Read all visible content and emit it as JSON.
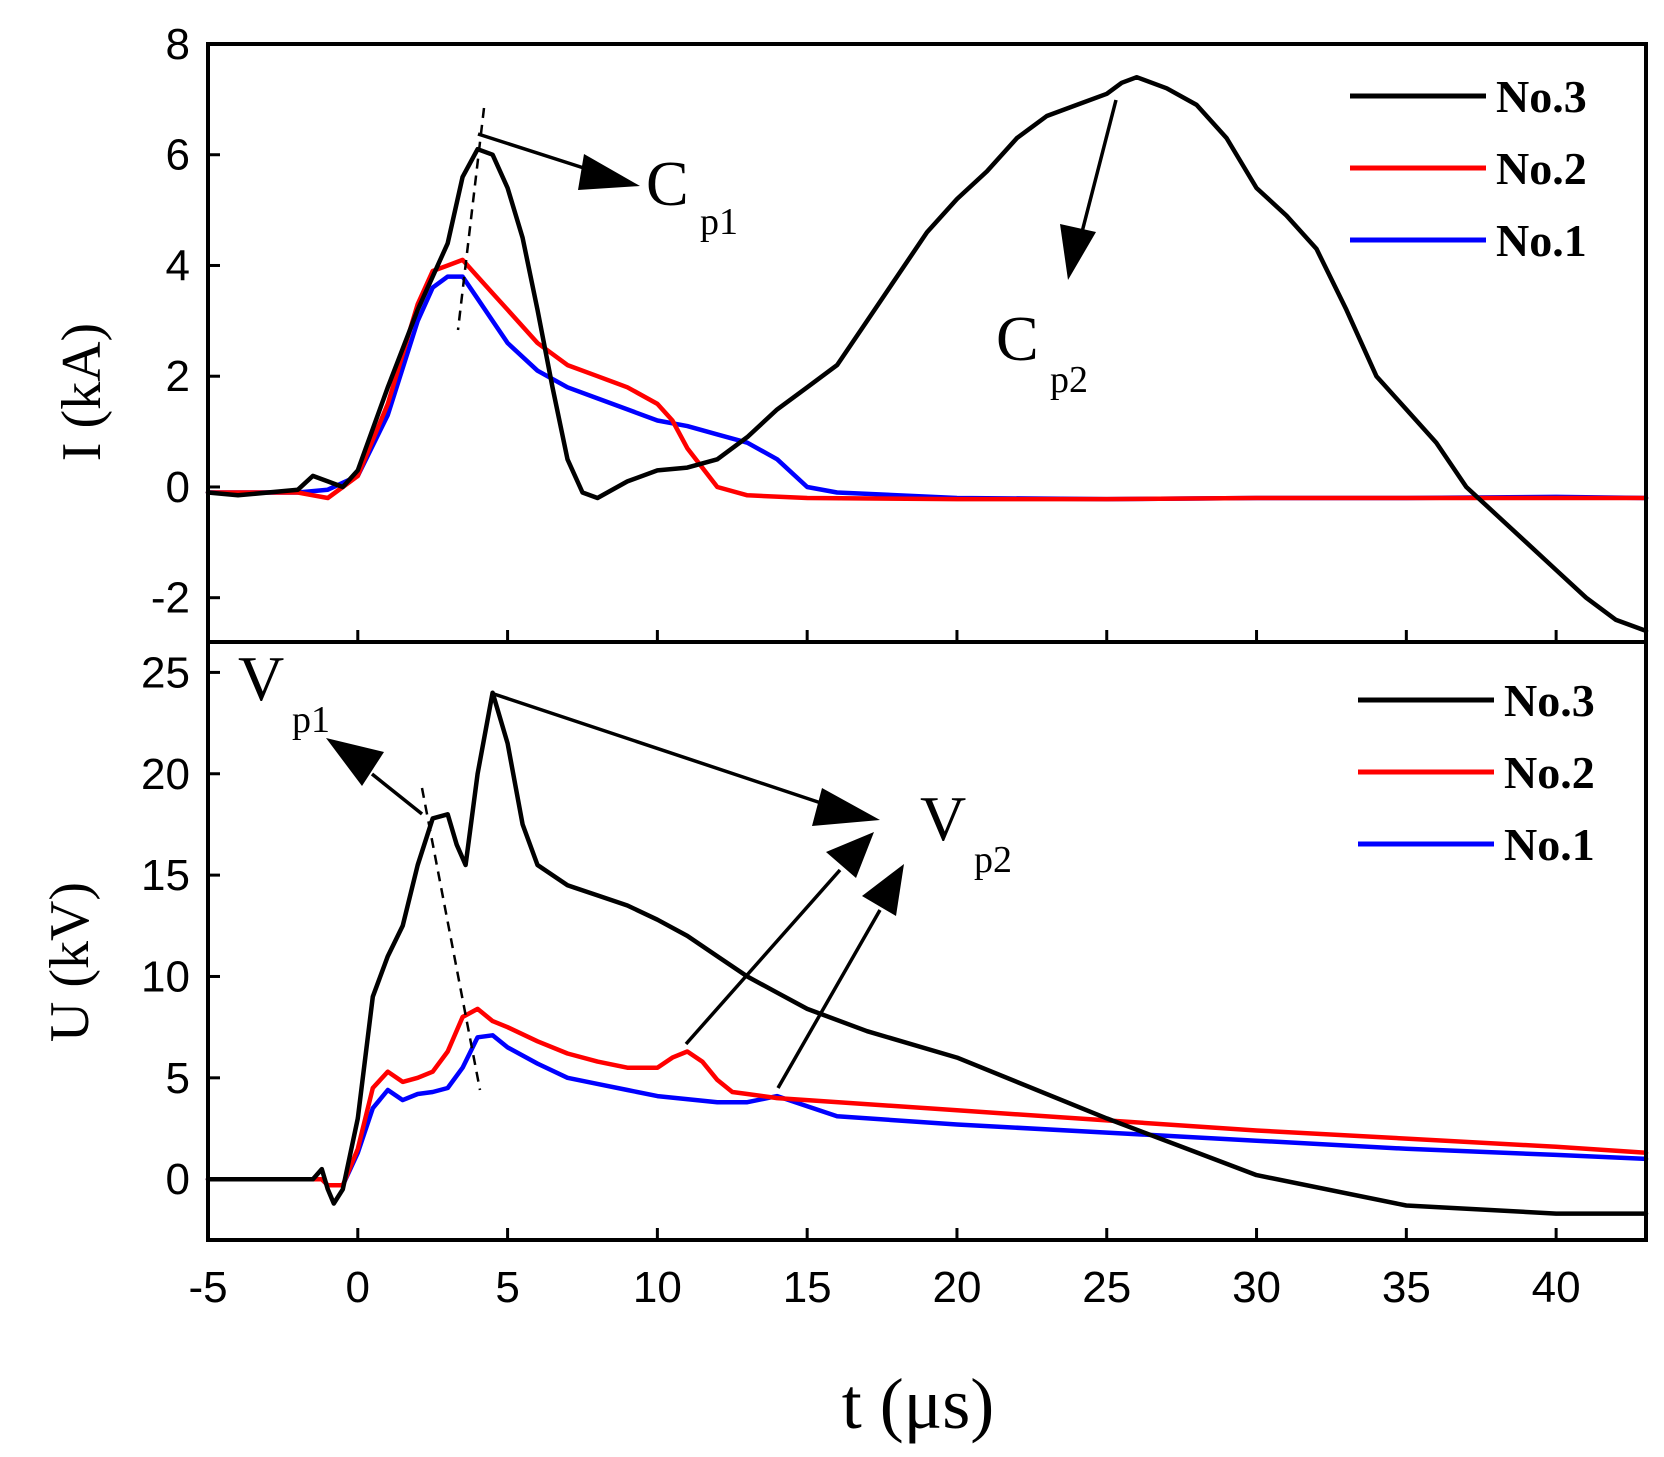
{
  "chart_data": [
    {
      "type": "line",
      "panel": "top",
      "ylabel": "I (kA)",
      "xlabel": "t (μs)",
      "xlim": [
        -5,
        43
      ],
      "ylim": [
        -2.8,
        8
      ],
      "xticks": [
        -5,
        0,
        5,
        10,
        15,
        20,
        25,
        30,
        35,
        40
      ],
      "yticks": [
        -2,
        0,
        2,
        4,
        6,
        8
      ],
      "ytick_labels": [
        "-2",
        "0",
        "2",
        "4",
        "6",
        "8"
      ],
      "legend_position": "top-right",
      "series": [
        {
          "name": "No.3",
          "color": "#000000",
          "x": [
            -5,
            -4,
            -2,
            -1.5,
            -1,
            -0.5,
            0,
            1,
            2,
            3,
            3.5,
            4,
            4.5,
            5,
            5.5,
            6,
            6.5,
            7,
            7.5,
            8,
            9,
            10,
            11,
            12,
            13,
            14,
            15,
            16,
            17,
            18,
            19,
            20,
            21,
            22,
            23,
            24,
            25,
            25.5,
            26,
            27,
            28,
            29,
            30,
            31,
            32,
            33,
            34,
            35,
            36,
            37,
            38,
            39,
            40,
            41,
            42,
            43
          ],
          "y": [
            -0.1,
            -0.15,
            -0.05,
            0.2,
            0.1,
            0.0,
            0.3,
            1.8,
            3.2,
            4.4,
            5.6,
            6.1,
            6.0,
            5.4,
            4.5,
            3.2,
            1.8,
            0.5,
            -0.1,
            -0.2,
            0.1,
            0.3,
            0.35,
            0.5,
            0.9,
            1.4,
            1.8,
            2.2,
            3.0,
            3.8,
            4.6,
            5.2,
            5.7,
            6.3,
            6.7,
            6.9,
            7.1,
            7.3,
            7.4,
            7.2,
            6.9,
            6.3,
            5.4,
            4.9,
            4.3,
            3.2,
            2.0,
            1.4,
            0.8,
            0.0,
            -0.5,
            -1.0,
            -1.5,
            -2.0,
            -2.4,
            -2.6
          ]
        },
        {
          "name": "No.2",
          "color": "#ff0000",
          "x": [
            -5,
            -2,
            -1.5,
            -1,
            -0.5,
            0,
            1,
            2,
            2.5,
            3,
            3.5,
            4,
            4.5,
            5,
            6,
            7,
            8,
            9,
            10,
            10.5,
            11,
            12,
            13,
            15,
            20,
            25,
            30,
            35,
            40,
            43
          ],
          "y": [
            -0.1,
            -0.1,
            -0.15,
            -0.2,
            0.0,
            0.2,
            1.5,
            3.3,
            3.9,
            4.0,
            4.1,
            3.8,
            3.5,
            3.2,
            2.6,
            2.2,
            2.0,
            1.8,
            1.5,
            1.2,
            0.7,
            0.0,
            -0.15,
            -0.2,
            -0.22,
            -0.22,
            -0.2,
            -0.2,
            -0.2,
            -0.2
          ]
        },
        {
          "name": "No.1",
          "color": "#0000ff",
          "x": [
            -5,
            -2,
            -1,
            0,
            1,
            2,
            2.5,
            3,
            3.5,
            4,
            4.5,
            5,
            6,
            7,
            8,
            9,
            10,
            11,
            12,
            13,
            14,
            15,
            16,
            20,
            25,
            30,
            35,
            40,
            43
          ],
          "y": [
            -0.1,
            -0.1,
            -0.05,
            0.2,
            1.3,
            3.0,
            3.6,
            3.8,
            3.8,
            3.4,
            3.0,
            2.6,
            2.1,
            1.8,
            1.6,
            1.4,
            1.2,
            1.1,
            0.95,
            0.8,
            0.5,
            0.0,
            -0.1,
            -0.2,
            -0.22,
            -0.2,
            -0.2,
            -0.18,
            -0.2
          ]
        }
      ],
      "annotations": [
        {
          "label": "C",
          "subscript": "p1"
        },
        {
          "label": "C",
          "subscript": "p2"
        }
      ]
    },
    {
      "type": "line",
      "panel": "bottom",
      "ylabel": "U (kV)",
      "xlabel": "t (μs)",
      "xlim": [
        -5,
        43
      ],
      "ylim": [
        -3,
        26.5
      ],
      "xticks": [
        -5,
        0,
        5,
        10,
        15,
        20,
        25,
        30,
        35,
        40
      ],
      "xtick_labels": [
        "-5",
        "0",
        "5",
        "10",
        "15",
        "20",
        "25",
        "30",
        "35",
        "40"
      ],
      "yticks": [
        0,
        5,
        10,
        15,
        20,
        25
      ],
      "ytick_labels": [
        "0",
        "5",
        "10",
        "15",
        "20",
        "25"
      ],
      "legend_position": "top-right",
      "series": [
        {
          "name": "No.3",
          "color": "#000000",
          "x": [
            -5,
            -2,
            -1.5,
            -1.2,
            -1,
            -0.8,
            -0.5,
            0,
            0.5,
            1,
            1.5,
            2,
            2.5,
            3,
            3.3,
            3.6,
            4,
            4.5,
            5,
            5.5,
            6,
            7,
            8,
            9,
            10,
            11,
            12,
            13,
            14,
            15,
            17,
            20,
            25,
            30,
            35,
            40,
            43
          ],
          "y": [
            0,
            0,
            0,
            0.5,
            -0.5,
            -1.2,
            -0.5,
            3.0,
            9.0,
            11.0,
            12.5,
            15.5,
            17.8,
            18.0,
            16.5,
            15.5,
            20.0,
            24.0,
            21.5,
            17.5,
            15.5,
            14.5,
            14.0,
            13.5,
            12.8,
            12.0,
            11.0,
            10.0,
            9.2,
            8.4,
            7.3,
            6.0,
            3.0,
            0.2,
            -1.3,
            -1.7,
            -1.7
          ]
        },
        {
          "name": "No.2",
          "color": "#ff0000",
          "x": [
            -5,
            -2,
            -1.2,
            -1,
            -0.5,
            0,
            0.5,
            1,
            1.5,
            2,
            2.5,
            3,
            3.5,
            4,
            4.5,
            5,
            6,
            7,
            8,
            9,
            10,
            10.5,
            11,
            11.5,
            12,
            12.5,
            13,
            14,
            15,
            20,
            25,
            30,
            35,
            40,
            43
          ],
          "y": [
            0,
            0,
            0,
            -0.3,
            -0.3,
            1.5,
            4.5,
            5.3,
            4.8,
            5.0,
            5.3,
            6.3,
            8.0,
            8.4,
            7.8,
            7.5,
            6.8,
            6.2,
            5.8,
            5.5,
            5.5,
            6.0,
            6.3,
            5.8,
            4.9,
            4.3,
            4.2,
            4.0,
            3.9,
            3.4,
            2.9,
            2.4,
            2.0,
            1.6,
            1.3
          ]
        },
        {
          "name": "No.1",
          "color": "#0000ff",
          "x": [
            -5,
            -2,
            -1.2,
            -1,
            -0.5,
            0,
            0.5,
            1,
            1.5,
            2,
            2.5,
            3,
            3.5,
            4,
            4.5,
            5,
            6,
            7,
            8,
            9,
            10,
            12,
            13,
            14,
            15,
            16,
            20,
            25,
            30,
            35,
            40,
            43
          ],
          "y": [
            0,
            0,
            0,
            -0.3,
            -0.3,
            1.3,
            3.5,
            4.4,
            3.9,
            4.2,
            4.3,
            4.5,
            5.5,
            7.0,
            7.1,
            6.5,
            5.7,
            5.0,
            4.7,
            4.4,
            4.1,
            3.8,
            3.8,
            4.1,
            3.6,
            3.1,
            2.7,
            2.3,
            1.9,
            1.5,
            1.2,
            1.0
          ]
        }
      ],
      "annotations": [
        {
          "label": "V",
          "subscript": "p1"
        },
        {
          "label": "V",
          "subscript": "p2"
        }
      ]
    }
  ]
}
